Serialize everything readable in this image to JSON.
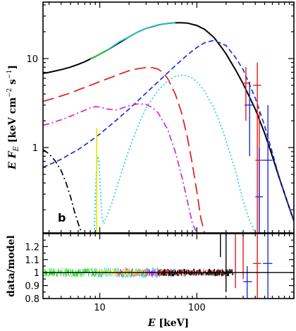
{
  "chart_data": [
    {
      "type": "line",
      "panel": "spectrum",
      "xscale": "log",
      "yscale": "log",
      "xlim": [
        2.6,
        1000
      ],
      "ylim": [
        0.11,
        43
      ],
      "xticklabels": [
        "10",
        "100"
      ],
      "yticklabels": [
        "1",
        "10"
      ],
      "ylabel_parts": [
        "E F",
        "E",
        " [keV cm",
        "−2",
        " s",
        "−1",
        "]"
      ],
      "annotation": "b",
      "series": [
        {
          "key": "total",
          "color": "#000000",
          "style": "solid",
          "x": [
            2.6,
            3,
            4,
            5,
            6,
            7,
            8,
            9,
            10,
            12,
            15,
            20,
            25,
            30,
            40,
            50,
            60,
            70,
            80,
            100,
            120,
            150,
            180,
            200,
            250,
            300,
            400,
            500,
            600,
            700,
            850,
            1000
          ],
          "y": [
            6.8,
            7.0,
            7.5,
            8.0,
            8.6,
            9.2,
            9.9,
            10.5,
            11.2,
            12.5,
            14.5,
            17.5,
            20.0,
            21.8,
            23.8,
            24.8,
            25.2,
            25.2,
            25.0,
            23.5,
            21.3,
            17.3,
            13.3,
            11.3,
            7.5,
            5.2,
            2.7,
            1.45,
            0.8,
            0.47,
            0.25,
            0.15
          ]
        },
        {
          "key": "blue-comp",
          "color": "#1f2fd6",
          "style": "dashed",
          "x": [
            2.6,
            3,
            4,
            5,
            6,
            8,
            10,
            15,
            20,
            30,
            40,
            60,
            80,
            100,
            120,
            150,
            200,
            250,
            300,
            400,
            500,
            600,
            700,
            850,
            1000
          ],
          "y": [
            0.6,
            0.64,
            0.74,
            0.85,
            0.95,
            1.18,
            1.42,
            2.05,
            2.7,
            4.1,
            5.5,
            8.3,
            11.0,
            13.3,
            15.0,
            16.0,
            14.0,
            10.3,
            7.5,
            3.6,
            1.75,
            0.88,
            0.48,
            0.25,
            0.15
          ]
        },
        {
          "key": "red-comp",
          "color": "#e41a1c",
          "style": "longdash",
          "x": [
            2.6,
            3,
            4,
            5,
            6,
            8,
            10,
            15,
            20,
            25,
            30,
            35,
            40,
            45,
            50,
            60,
            70,
            80,
            90,
            100,
            110,
            120
          ],
          "y": [
            3.3,
            3.45,
            3.8,
            4.1,
            4.45,
            5.0,
            5.5,
            6.5,
            7.3,
            7.7,
            7.9,
            7.9,
            7.6,
            6.9,
            6.0,
            4.0,
            2.4,
            1.3,
            0.65,
            0.32,
            0.16,
            0.11
          ]
        },
        {
          "key": "magenta-comp",
          "color": "#e020d8",
          "style": "dashdot",
          "x": [
            2.6,
            3,
            4,
            5,
            6,
            7,
            8,
            9,
            10,
            12,
            15,
            20,
            25,
            30,
            35,
            40,
            50,
            60,
            70,
            80,
            90,
            100
          ],
          "y": [
            1.78,
            1.85,
            2.05,
            2.25,
            2.45,
            2.62,
            2.8,
            2.88,
            2.85,
            2.7,
            2.65,
            2.95,
            3.1,
            3.05,
            2.8,
            2.45,
            1.6,
            0.9,
            0.47,
            0.25,
            0.14,
            0.11
          ]
        },
        {
          "key": "cyan-comp",
          "color": "#22d3e0",
          "style": "dotted",
          "x": [
            8.8,
            9.0,
            9.3,
            9.6,
            9.8,
            10,
            10.3,
            10.6,
            11,
            13,
            16,
            20,
            25,
            30,
            40,
            50,
            60,
            70,
            80,
            90,
            100,
            120,
            150,
            180,
            200,
            250,
            300,
            350,
            400,
            500
          ],
          "y": [
            0.11,
            0.3,
            0.62,
            0.8,
            0.7,
            0.45,
            0.25,
            0.16,
            0.14,
            0.22,
            0.45,
            0.95,
            1.8,
            2.8,
            4.4,
            5.6,
            6.3,
            6.5,
            6.4,
            6.0,
            5.5,
            4.3,
            2.8,
            1.7,
            1.2,
            0.55,
            0.25,
            0.15,
            0.11,
            0.11
          ]
        },
        {
          "key": "black-dashdot-comp",
          "color": "#000000",
          "style": "dashdot",
          "x": [
            2.6,
            3,
            3.5,
            4,
            4.5,
            5,
            5.5,
            6,
            6.5
          ],
          "y": [
            0.95,
            0.85,
            0.7,
            0.55,
            0.4,
            0.28,
            0.19,
            0.14,
            0.11
          ]
        },
        {
          "key": "yellow-line",
          "color": "#e8e800",
          "style": "solid",
          "x": [
            9.3,
            9.3
          ],
          "y": [
            0.11,
            1.65
          ]
        },
        {
          "key": "data-green",
          "color": "#22d822",
          "style": "solid",
          "x": [
            8.0,
            9.0,
            10.0,
            11.0,
            12.0
          ],
          "y": [
            9.8,
            10.5,
            11.2,
            11.9,
            12.5
          ]
        },
        {
          "key": "data-cyan",
          "color": "#22d3e0",
          "style": "solid",
          "x": [
            12,
            16,
            20,
            25,
            30,
            35,
            40,
            50,
            60
          ],
          "y": [
            12.5,
            15.5,
            17.5,
            20.0,
            21.8,
            23.0,
            23.8,
            24.8,
            25.2
          ]
        }
      ],
      "error_points": [
        {
          "color": "#e41a1c",
          "x": 320,
          "xerr": [
            290,
            350
          ],
          "y": 5.3,
          "yerr": [
            2.0,
            8.0
          ]
        },
        {
          "color": "#e41a1c",
          "x": 420,
          "xerr": [
            380,
            460
          ],
          "y": 5.0,
          "yerr": [
            0.11,
            9.0
          ]
        },
        {
          "color": "#e41a1c",
          "x": 440,
          "xerr": [
            400,
            480
          ],
          "y": 0.72,
          "yerr": [
            0.11,
            2.5
          ]
        },
        {
          "color": "#1f2fd6",
          "x": 350,
          "xerr": [
            310,
            390
          ],
          "y": 3.0,
          "yerr": [
            0.8,
            5.5
          ]
        },
        {
          "color": "#1f2fd6",
          "x": 440,
          "xerr": [
            400,
            480
          ],
          "y": 0.28,
          "yerr": [
            0.11,
            1.0
          ]
        },
        {
          "color": "#1f2fd6",
          "x": 540,
          "xerr": [
            480,
            600
          ],
          "y": 0.72,
          "yerr": [
            0.11,
            3.0
          ]
        }
      ]
    },
    {
      "type": "line",
      "panel": "ratio",
      "xscale": "log",
      "xlim": [
        2.6,
        1000
      ],
      "ylim": [
        0.8,
        1.3
      ],
      "xticklabels": [
        "10",
        "100"
      ],
      "xlabel_parts": [
        "E",
        "  [keV]"
      ],
      "yticklabels": [
        "0.8",
        "0.9",
        "1",
        "1.1",
        "1.2"
      ],
      "ylabel": "data/model",
      "reference_line": 1.0,
      "noise_bands": [
        {
          "color": "#22d822",
          "x": [
            2.6,
            9.5
          ],
          "amp": 0.035
        },
        {
          "color": "#22d3e0",
          "x": [
            9,
            40
          ],
          "amp": 0.04
        },
        {
          "color": "#e020d8",
          "x": [
            15,
            40
          ],
          "amp": 0.03
        },
        {
          "color": "#e8e800",
          "x": [
            9,
            30
          ],
          "amp": 0.025
        },
        {
          "color": "#e41a1c",
          "x": [
            40,
            200
          ],
          "amp": 0.025
        },
        {
          "color": "#000000",
          "x": [
            40,
            240
          ],
          "amp": 0.03
        }
      ],
      "error_points": [
        {
          "color": "#000000",
          "x": 175,
          "y": 1.22,
          "yerr": [
            1.12,
            1.32
          ]
        },
        {
          "color": "#000000",
          "x": 200,
          "y": 1.05,
          "yerr": [
            0.85,
            1.3
          ]
        },
        {
          "color": "#e41a1c",
          "x": 250,
          "y": 0.98,
          "yerr": [
            0.88,
            1.3
          ]
        },
        {
          "color": "#e41a1c",
          "x": 300,
          "y": 1.12,
          "yerr": [
            0.95,
            1.3
          ]
        },
        {
          "color": "#1f2fd6",
          "x": 330,
          "xerr": [
            300,
            370
          ],
          "y": 0.93,
          "yerr": [
            0.8,
            1.05
          ]
        },
        {
          "color": "#e41a1c",
          "x": 420,
          "xerr": [
            380,
            460
          ],
          "y": 1.07,
          "yerr": [
            0.8,
            1.3
          ]
        },
        {
          "color": "#1f2fd6",
          "x": 540,
          "xerr": [
            480,
            600
          ],
          "y": 1.07,
          "yerr": [
            0.8,
            1.3
          ]
        }
      ]
    }
  ]
}
